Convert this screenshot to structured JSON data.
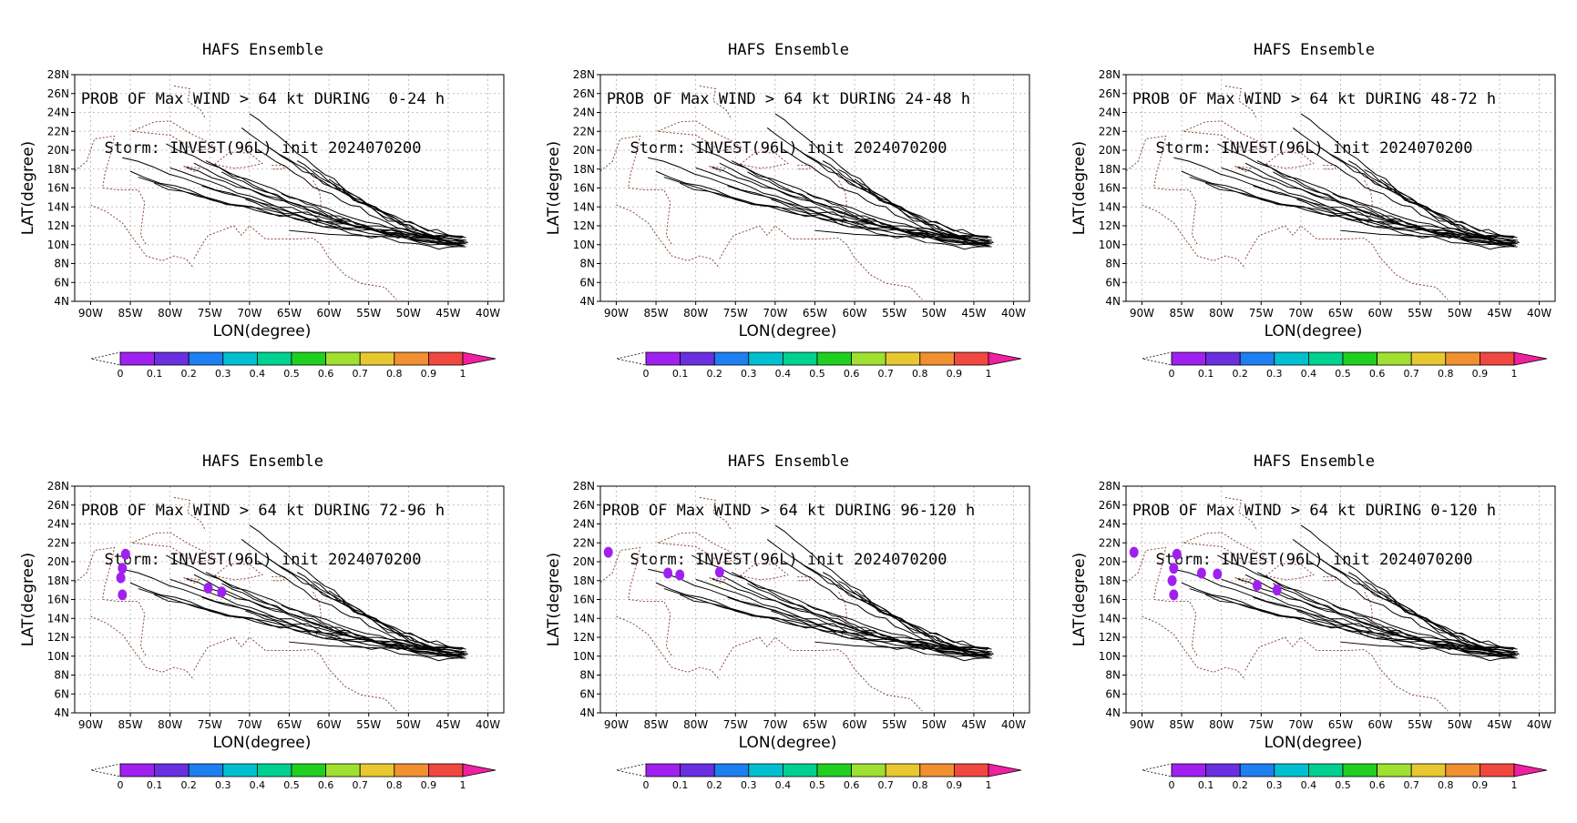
{
  "window": {
    "title": ""
  },
  "colorbar": {
    "ticks": [
      "0",
      "0.1",
      "0.2",
      "0.3",
      "0.4",
      "0.5",
      "0.6",
      "0.7",
      "0.8",
      "0.9",
      "1"
    ],
    "colors": [
      "#a020f0",
      "#6a2fe0",
      "#1e7ff0",
      "#00c0d0",
      "#00d090",
      "#20d020",
      "#a0e030",
      "#e8c830",
      "#f09030",
      "#f04840"
    ],
    "over_color": "#f020a0"
  },
  "chart_data": [
    {
      "type": "map-probability",
      "title": "HAFS Ensemble",
      "subtitle": "PROB OF Max WIND > 64 kt DURING  0-24 h",
      "storm_line": "Storm: INVEST(96L) init 2024070200",
      "xlabel": "LON(degree)",
      "ylabel": "LAT(degree)",
      "xlim": [
        -92,
        -38
      ],
      "ylim": [
        4,
        28
      ],
      "xticks": [
        "90W",
        "85W",
        "80W",
        "75W",
        "70W",
        "65W",
        "60W",
        "55W",
        "50W",
        "45W",
        "40W"
      ],
      "yticks": [
        "4N",
        "6N",
        "8N",
        "10N",
        "12N",
        "14N",
        "16N",
        "18N",
        "20N",
        "22N",
        "24N",
        "26N",
        "28N"
      ],
      "grid": true,
      "probability_blobs": []
    },
    {
      "type": "map-probability",
      "title": "HAFS Ensemble",
      "subtitle": "PROB OF Max WIND > 64 kt DURING 24-48 h",
      "storm_line": "Storm: INVEST(96L) init 2024070200",
      "xlabel": "LON(degree)",
      "ylabel": "LAT(degree)",
      "xlim": [
        -92,
        -38
      ],
      "ylim": [
        4,
        28
      ],
      "xticks": [
        "90W",
        "85W",
        "80W",
        "75W",
        "70W",
        "65W",
        "60W",
        "55W",
        "50W",
        "45W",
        "40W"
      ],
      "yticks": [
        "4N",
        "6N",
        "8N",
        "10N",
        "12N",
        "14N",
        "16N",
        "18N",
        "20N",
        "22N",
        "24N",
        "26N",
        "28N"
      ],
      "grid": true,
      "probability_blobs": []
    },
    {
      "type": "map-probability",
      "title": "HAFS Ensemble",
      "subtitle": "PROB OF Max WIND > 64 kt DURING 48-72 h",
      "storm_line": "Storm: INVEST(96L) init 2024070200",
      "xlabel": "LON(degree)",
      "ylabel": "LAT(degree)",
      "xlim": [
        -92,
        -38
      ],
      "ylim": [
        4,
        28
      ],
      "xticks": [
        "90W",
        "85W",
        "80W",
        "75W",
        "70W",
        "65W",
        "60W",
        "55W",
        "50W",
        "45W",
        "40W"
      ],
      "yticks": [
        "4N",
        "6N",
        "8N",
        "10N",
        "12N",
        "14N",
        "16N",
        "18N",
        "20N",
        "22N",
        "24N",
        "26N",
        "28N"
      ],
      "grid": true,
      "probability_blobs": []
    },
    {
      "type": "map-probability",
      "title": "HAFS Ensemble",
      "subtitle": "PROB OF Max WIND > 64 kt DURING 72-96 h",
      "storm_line": "Storm: INVEST(96L) init 2024070200",
      "xlabel": "LON(degree)",
      "ylabel": "LAT(degree)",
      "xlim": [
        -92,
        -38
      ],
      "ylim": [
        4,
        28
      ],
      "xticks": [
        "90W",
        "85W",
        "80W",
        "75W",
        "70W",
        "65W",
        "60W",
        "55W",
        "50W",
        "45W",
        "40W"
      ],
      "yticks": [
        "4N",
        "6N",
        "8N",
        "10N",
        "12N",
        "14N",
        "16N",
        "18N",
        "20N",
        "22N",
        "24N",
        "26N",
        "28N"
      ],
      "grid": true,
      "probability_blobs": [
        {
          "lon": -86.0,
          "lat": 19.3,
          "value": 0.05
        },
        {
          "lon": -86.2,
          "lat": 18.3,
          "value": 0.05
        },
        {
          "lon": -86.0,
          "lat": 16.5,
          "value": 0.05
        },
        {
          "lon": -85.6,
          "lat": 20.8,
          "value": 0.05
        },
        {
          "lon": -75.2,
          "lat": 17.2,
          "value": 0.05
        },
        {
          "lon": -73.5,
          "lat": 16.8,
          "value": 0.05
        }
      ]
    },
    {
      "type": "map-probability",
      "title": "HAFS Ensemble",
      "subtitle": "PROB OF Max WIND > 64 kt DURING 96-120 h",
      "storm_line": "Storm: INVEST(96L) init 2024070200",
      "xlabel": "LON(degree)",
      "ylabel": "LAT(degree)",
      "xlim": [
        -92,
        -38
      ],
      "ylim": [
        4,
        28
      ],
      "xticks": [
        "90W",
        "85W",
        "80W",
        "75W",
        "70W",
        "65W",
        "60W",
        "55W",
        "50W",
        "45W",
        "40W"
      ],
      "yticks": [
        "4N",
        "6N",
        "8N",
        "10N",
        "12N",
        "14N",
        "16N",
        "18N",
        "20N",
        "22N",
        "24N",
        "26N",
        "28N"
      ],
      "grid": true,
      "probability_blobs": [
        {
          "lon": -82.0,
          "lat": 18.6,
          "value": 0.05
        },
        {
          "lon": -83.5,
          "lat": 18.8,
          "value": 0.05
        },
        {
          "lon": -91.0,
          "lat": 21.0,
          "value": 0.05
        },
        {
          "lon": -77.0,
          "lat": 18.9,
          "value": 0.05
        }
      ]
    },
    {
      "type": "map-probability",
      "title": "HAFS Ensemble",
      "subtitle": "PROB OF Max WIND > 64 kt DURING 0-120 h",
      "storm_line": "Storm: INVEST(96L) init 2024070200",
      "xlabel": "LON(degree)",
      "ylabel": "LAT(degree)",
      "xlim": [
        -92,
        -38
      ],
      "ylim": [
        4,
        28
      ],
      "xticks": [
        "90W",
        "85W",
        "80W",
        "75W",
        "70W",
        "65W",
        "60W",
        "55W",
        "50W",
        "45W",
        "40W"
      ],
      "yticks": [
        "4N",
        "6N",
        "8N",
        "10N",
        "12N",
        "14N",
        "16N",
        "18N",
        "20N",
        "22N",
        "24N",
        "26N",
        "28N"
      ],
      "grid": true,
      "probability_blobs": [
        {
          "lon": -86.0,
          "lat": 19.3,
          "value": 0.05
        },
        {
          "lon": -86.2,
          "lat": 18.0,
          "value": 0.05
        },
        {
          "lon": -86.0,
          "lat": 16.5,
          "value": 0.05
        },
        {
          "lon": -85.6,
          "lat": 20.8,
          "value": 0.05
        },
        {
          "lon": -82.5,
          "lat": 18.8,
          "value": 0.05
        },
        {
          "lon": -80.5,
          "lat": 18.7,
          "value": 0.05
        },
        {
          "lon": -75.5,
          "lat": 17.5,
          "value": 0.05
        },
        {
          "lon": -73.0,
          "lat": 17.0,
          "value": 0.05
        },
        {
          "lon": -91.0,
          "lat": 21.0,
          "value": 0.05
        }
      ]
    }
  ]
}
